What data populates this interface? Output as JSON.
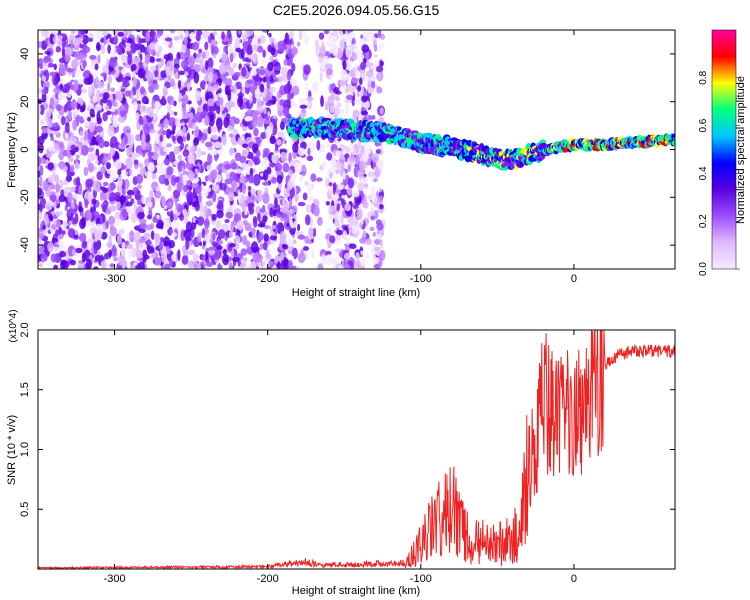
{
  "title": "C2E5.2026.094.05.56.G15",
  "chart_data": [
    {
      "type": "heatmap",
      "xlabel": "Height of straight line (km)",
      "ylabel": "Frequency (Hz)",
      "xlim": [
        -350,
        66
      ],
      "ylim": [
        -50,
        50
      ],
      "xticks": [
        -300,
        -200,
        -100,
        0
      ],
      "xtick_labels": [
        "-300",
        "-200",
        "-100",
        "0"
      ],
      "yticks": [
        -40,
        -20,
        0,
        20,
        40
      ],
      "ytick_labels": [
        "-40",
        "-20",
        "0",
        "20",
        "40"
      ],
      "colorbar": {
        "label": "Normalized spectral amplitude",
        "range": [
          0,
          1
        ],
        "ticks": [
          0,
          0.2,
          0.4,
          0.6,
          0.8
        ],
        "tick_labels": [
          "0.0",
          "0.2",
          "0.4",
          "0.6",
          "0.8"
        ],
        "colors": [
          "#f4eaff",
          "#e0b8ff",
          "#9b4dff",
          "#5a00e0",
          "#0000ff",
          "#00c8ff",
          "#00ff80",
          "#ffff00",
          "#ff0000",
          "#ff00a0"
        ]
      },
      "signal_track": {
        "x": [
          -185,
          -160,
          -140,
          -120,
          -100,
          -80,
          -60,
          -45,
          -30,
          -10,
          0,
          20,
          40,
          66
        ],
        "y": [
          9,
          9,
          8,
          7,
          3,
          1,
          -2,
          -5,
          -2,
          1,
          2,
          2,
          3,
          4
        ]
      },
      "noise_region": [
        -350,
        -125
      ],
      "grid": false
    },
    {
      "type": "line",
      "xlabel": "Height of straight line (km)",
      "ylabel": "SNR (10 * v/v)",
      "y_multiplier": "(x10^4)",
      "xlim": [
        -350,
        66
      ],
      "ylim": [
        0,
        2.0
      ],
      "xticks": [
        -300,
        -200,
        -100,
        0
      ],
      "xtick_labels": [
        "-300",
        "-200",
        "-100",
        "0"
      ],
      "yticks": [
        0.5,
        1.0,
        1.5,
        2.0
      ],
      "ytick_labels": [
        "0.5",
        "1.0",
        "1.5",
        "2.0"
      ],
      "series": [
        {
          "color": "#ee2222",
          "x": [
            -350,
            -200,
            -175,
            -165,
            -110,
            -100,
            -90,
            -80,
            -72,
            -65,
            -55,
            -45,
            -35,
            -30,
            -25,
            -20,
            -15,
            -10,
            -5,
            0,
            5,
            10,
            15,
            20,
            25,
            30,
            40,
            50,
            66
          ],
          "y": [
            0.01,
            0.02,
            0.06,
            0.03,
            0.05,
            0.2,
            0.4,
            0.5,
            0.3,
            0.25,
            0.2,
            0.22,
            0.3,
            0.8,
            1.1,
            1.4,
            1.3,
            1.2,
            1.3,
            1.4,
            1.35,
            1.45,
            1.6,
            1.7,
            1.75,
            1.8,
            1.82,
            1.83,
            1.82
          ]
        }
      ],
      "grid": false
    }
  ]
}
